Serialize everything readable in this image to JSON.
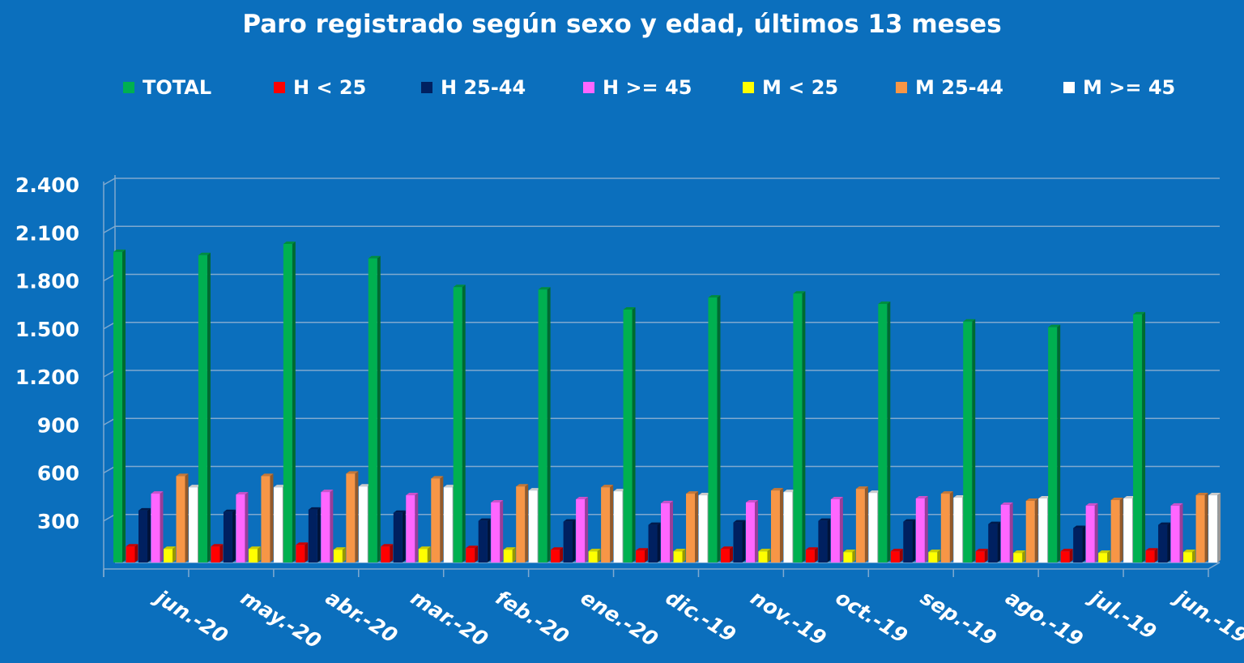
{
  "chart_data": {
    "type": "bar",
    "title": "Paro registrado según sexo y edad, últimos 13 meses",
    "categories": [
      "jun.-20",
      "may.-20",
      "abr.-20",
      "mar.-20",
      "feb.-20",
      "ene.-20",
      "dic.-19",
      "nov.-19",
      "oct.-19",
      "sep.-19",
      "ago.-19",
      "jul.-19",
      "jun.-19"
    ],
    "yticks": [
      "2.400",
      "2.100",
      "1.800",
      "1.500",
      "1.200",
      "900",
      "600",
      "300"
    ],
    "ylim": [
      0,
      2400
    ],
    "grid": true,
    "legend_position": "top",
    "series": [
      {
        "name": "TOTAL",
        "color": "#00b050",
        "values": [
          1940,
          1920,
          1990,
          1900,
          1720,
          1705,
          1580,
          1655,
          1680,
          1615,
          1505,
          1470,
          1550
        ]
      },
      {
        "name": "H < 25",
        "color": "#ff0000",
        "values": [
          100,
          100,
          110,
          100,
          90,
          80,
          75,
          85,
          80,
          70,
          70,
          70,
          75
        ]
      },
      {
        "name": "H 25-44",
        "color": "#002060",
        "values": [
          325,
          315,
          330,
          310,
          260,
          255,
          235,
          250,
          260,
          255,
          240,
          215,
          235
        ]
      },
      {
        "name": "H >= 45",
        "color": "#ff66ff",
        "values": [
          430,
          425,
          440,
          420,
          375,
          395,
          370,
          375,
          395,
          400,
          360,
          355,
          355
        ]
      },
      {
        "name": "M < 25",
        "color": "#ffff00",
        "values": [
          85,
          85,
          80,
          85,
          80,
          70,
          70,
          70,
          65,
          65,
          60,
          60,
          65
        ]
      },
      {
        "name": "M 25-44",
        "color": "#f79646",
        "values": [
          540,
          540,
          555,
          525,
          475,
          470,
          430,
          450,
          460,
          430,
          385,
          390,
          420
        ]
      },
      {
        "name": "M >= 45",
        "color": "#ffffff",
        "values": [
          470,
          470,
          475,
          470,
          450,
          445,
          420,
          440,
          435,
          405,
          400,
          400,
          420
        ]
      }
    ]
  }
}
